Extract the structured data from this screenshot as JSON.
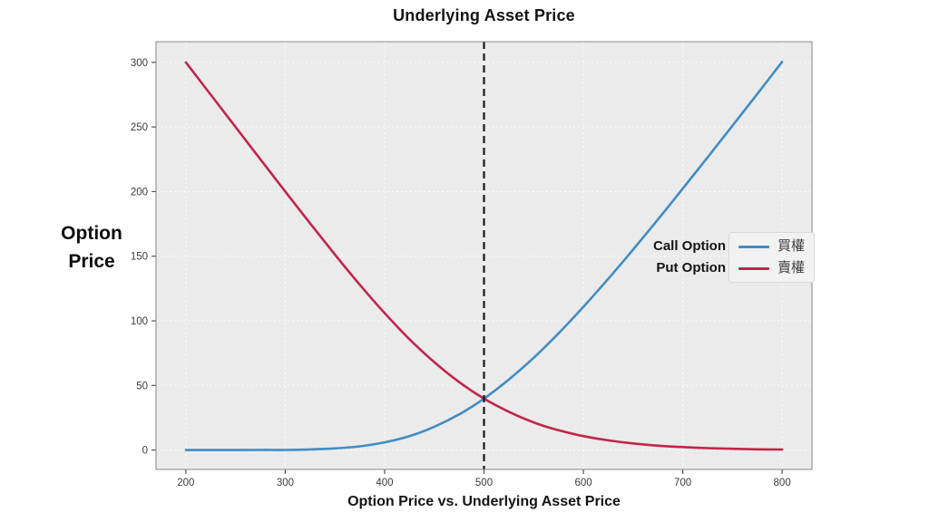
{
  "header": {
    "title": "Underlying Asset Price"
  },
  "y_axis": {
    "label_lines": [
      "Option",
      "Price"
    ]
  },
  "footer": {
    "caption": "Option Price vs. Underlying Asset Price"
  },
  "annotations": {
    "call_label": "Call Option",
    "put_label": "Put Option"
  },
  "legend": {
    "position": "center right",
    "items": [
      {
        "label": "買權",
        "series": "call",
        "color": "#418cc4"
      },
      {
        "label": "賣權",
        "series": "put",
        "color": "#c2254c"
      }
    ]
  },
  "chart_data": {
    "type": "line",
    "title": "Underlying Asset Price",
    "xlabel": "Option Price vs. Underlying Asset Price",
    "ylabel": "Option Price",
    "x": [
      200,
      225,
      250,
      275,
      300,
      325,
      350,
      375,
      400,
      425,
      450,
      475,
      500,
      525,
      550,
      575,
      600,
      625,
      650,
      675,
      700,
      725,
      750,
      775,
      800
    ],
    "series": [
      {
        "name": "買權",
        "name_en": "Call Option",
        "color": "#418cc4",
        "values": [
          0.0,
          0.0,
          0.0,
          0.1,
          0.1,
          0.5,
          1.3,
          2.9,
          6.0,
          10.8,
          18.0,
          27.6,
          39.8,
          54.6,
          71.4,
          90.3,
          110.8,
          132.5,
          155.1,
          178.4,
          202.3,
          226.5,
          251.0,
          275.6,
          300.4
        ]
      },
      {
        "name": "賣權",
        "name_en": "Put Option",
        "color": "#c2254c",
        "values": [
          300.0,
          275.0,
          250.0,
          225.0,
          200.1,
          175.5,
          151.3,
          127.9,
          106.0,
          85.8,
          68.0,
          52.6,
          39.8,
          29.6,
          21.4,
          15.3,
          10.8,
          7.5,
          5.1,
          3.4,
          2.3,
          1.5,
          1.0,
          0.6,
          0.4
        ]
      }
    ],
    "reference_line": {
      "axis": "x",
      "value": 500,
      "style": "dashed",
      "color": "#1a1a1a"
    },
    "x_ticks": [
      200,
      300,
      400,
      500,
      600,
      700,
      800
    ],
    "y_ticks": [
      0,
      50,
      100,
      150,
      200,
      250,
      300
    ],
    "xlim": [
      170,
      830
    ],
    "ylim": [
      -15,
      316
    ],
    "grid": true,
    "plot_bg": "#ebebeb",
    "grid_color": "#ffffff",
    "spine_color": "#8a8a8a",
    "tick_color": "#555555",
    "tick_label_color": "#3c3c3c",
    "legend_position": "center right"
  }
}
